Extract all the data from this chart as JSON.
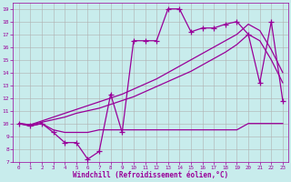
{
  "xlabel": "Windchill (Refroidissement éolien,°C)",
  "bg_color": "#c8ecec",
  "line_color": "#990099",
  "grid_color": "#b0b0b0",
  "xlim": [
    -0.5,
    23.5
  ],
  "ylim": [
    7,
    19.5
  ],
  "xticks": [
    0,
    1,
    2,
    3,
    4,
    5,
    6,
    7,
    8,
    9,
    10,
    11,
    12,
    13,
    14,
    15,
    16,
    17,
    18,
    19,
    20,
    21,
    22,
    23
  ],
  "yticks": [
    7,
    8,
    9,
    10,
    11,
    12,
    13,
    14,
    15,
    16,
    17,
    18,
    19
  ],
  "s_flat": [
    10,
    9.8,
    10,
    9.5,
    9.3,
    9.3,
    9.3,
    9.5,
    9.5,
    9.5,
    9.5,
    9.5,
    9.5,
    9.5,
    9.5,
    9.5,
    9.5,
    9.5,
    9.5,
    9.5,
    10,
    10,
    10,
    10
  ],
  "s_rise1": [
    10,
    9.9,
    10.1,
    10.3,
    10.5,
    10.8,
    11.0,
    11.2,
    11.5,
    11.8,
    12.1,
    12.5,
    12.9,
    13.3,
    13.7,
    14.1,
    14.6,
    15.1,
    15.6,
    16.2,
    17.0,
    16.5,
    15.0,
    13.2
  ],
  "s_rise2": [
    10,
    9.9,
    10.2,
    10.5,
    10.8,
    11.1,
    11.4,
    11.7,
    12.0,
    12.3,
    12.7,
    13.1,
    13.5,
    14.0,
    14.5,
    15.0,
    15.5,
    16.0,
    16.5,
    17.0,
    17.8,
    17.3,
    15.8,
    14.0
  ],
  "s_jagged": [
    10,
    9.8,
    10,
    9.3,
    8.5,
    8.5,
    7.2,
    7.8,
    12.3,
    9.3,
    16.5,
    16.5,
    16.5,
    19.0,
    19.0,
    17.2,
    17.5,
    17.5,
    17.8,
    18.0,
    17.0,
    13.2,
    18.0,
    11.8
  ]
}
